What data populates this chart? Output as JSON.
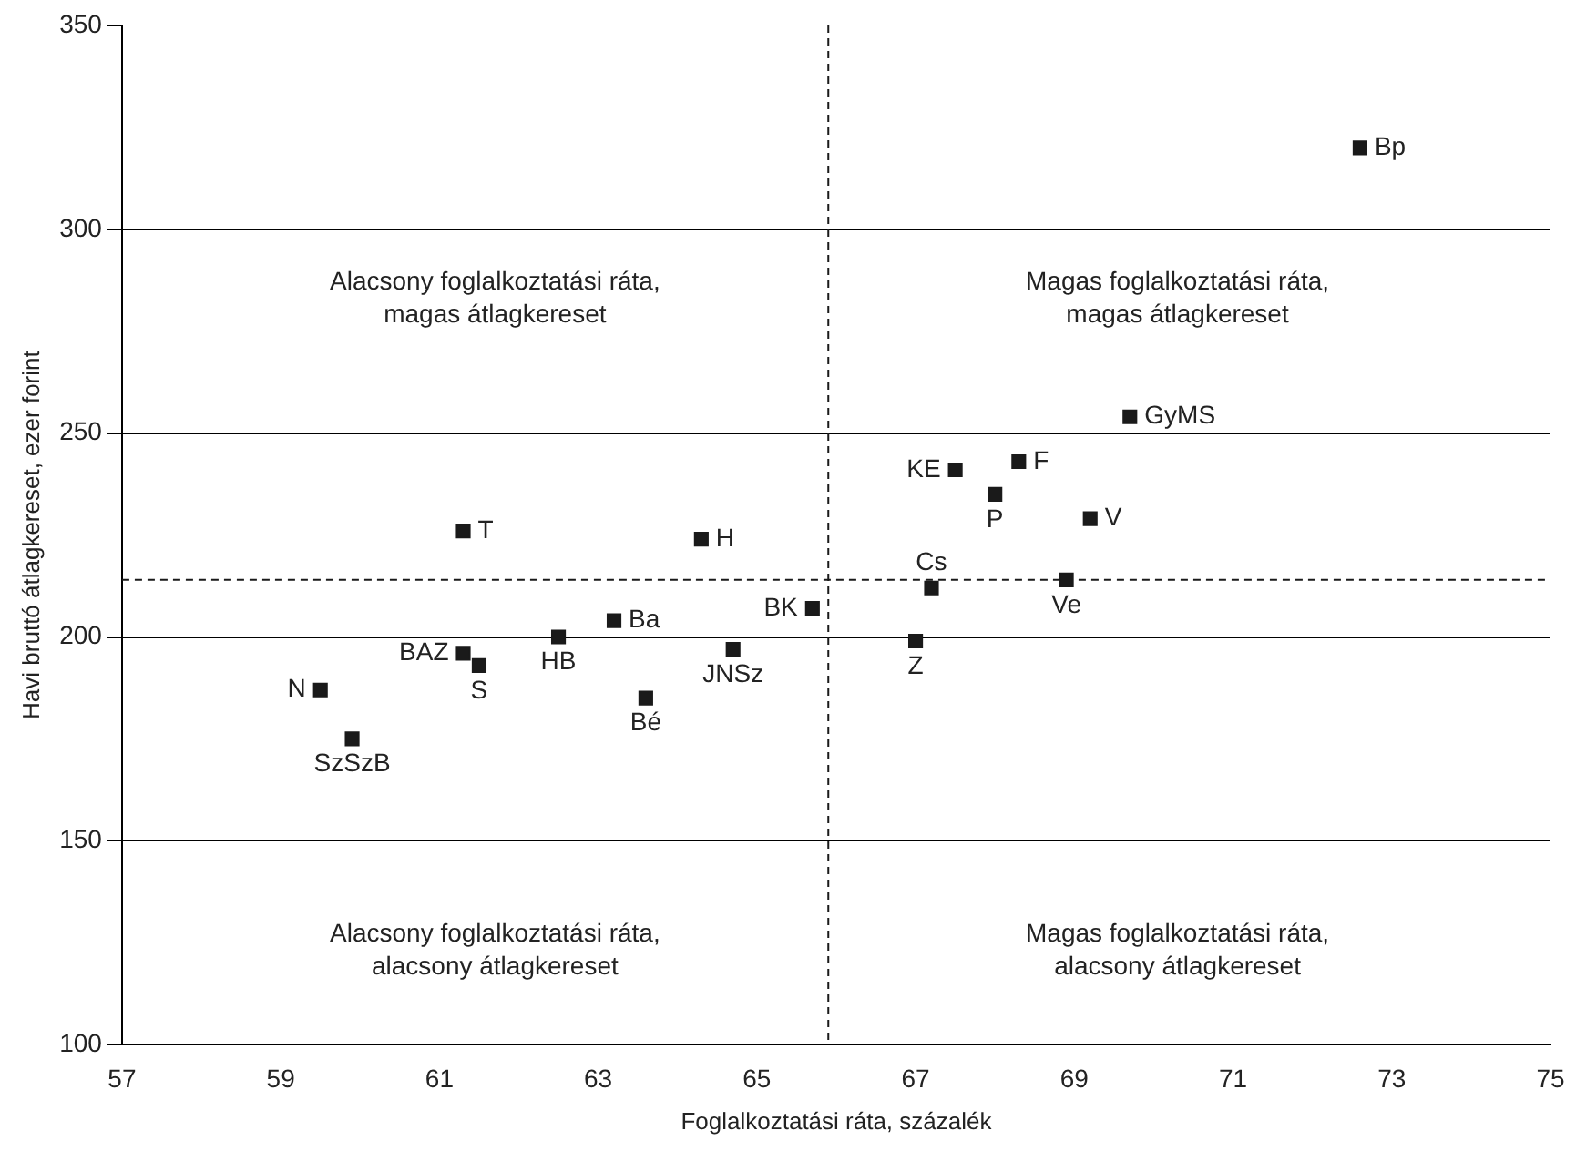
{
  "chart_data": {
    "type": "scatter",
    "xlabel": "Foglalkoztatási ráta, százalék",
    "ylabel": "Havi bruttó átlagkereset, ezer forint",
    "x": [
      72.6,
      69.7,
      67.5,
      68.3,
      68.0,
      69.2,
      67.2,
      68.9,
      67.0,
      65.7,
      61.3,
      64.3,
      63.2,
      62.5,
      61.3,
      61.5,
      59.5,
      59.9,
      63.6,
      64.7
    ],
    "series": [
      {
        "color": "#1a1a1a",
        "values": [
          320,
          254,
          241,
          243,
          235,
          229,
          212,
          214,
          199,
          207,
          226,
          224,
          204,
          200,
          196,
          193,
          187,
          175,
          185,
          197
        ]
      }
    ],
    "marker": "square",
    "xlim": [
      57,
      75
    ],
    "xticks": [
      57,
      59,
      61,
      63,
      65,
      67,
      69,
      71,
      73,
      75
    ],
    "ylim": [
      100,
      350
    ],
    "yticks": [
      100,
      150,
      200,
      250,
      300,
      350
    ],
    "grid": "y",
    "ref_lines": [
      {
        "axis": "x",
        "value": 65.9,
        "line_style": "dashed",
        "color": "#1a1a1a"
      },
      {
        "axis": "y",
        "value": 214,
        "line_style": "dashed",
        "color": "#1a1a1a"
      }
    ],
    "annotations": [
      {
        "text": "Bp",
        "x": 72.6,
        "y": 320
      },
      {
        "text": "GyMS",
        "x": 69.7,
        "y": 254
      },
      {
        "text": "KE",
        "x": 67.5,
        "y": 241
      },
      {
        "text": "F",
        "x": 68.3,
        "y": 243
      },
      {
        "text": "P",
        "x": 68.0,
        "y": 235
      },
      {
        "text": "V",
        "x": 69.2,
        "y": 229
      },
      {
        "text": "Cs",
        "x": 67.2,
        "y": 212
      },
      {
        "text": "Ve",
        "x": 68.9,
        "y": 214
      },
      {
        "text": "Z",
        "x": 67.0,
        "y": 199
      },
      {
        "text": "BK",
        "x": 65.7,
        "y": 207
      },
      {
        "text": "T",
        "x": 61.3,
        "y": 226
      },
      {
        "text": "H",
        "x": 64.3,
        "y": 224
      },
      {
        "text": "Ba",
        "x": 63.2,
        "y": 204
      },
      {
        "text": "HB",
        "x": 62.5,
        "y": 200
      },
      {
        "text": "BAZ",
        "x": 61.3,
        "y": 196
      },
      {
        "text": "S",
        "x": 61.5,
        "y": 193
      },
      {
        "text": "N",
        "x": 59.5,
        "y": 187
      },
      {
        "text": "SzSzB",
        "x": 59.9,
        "y": 175
      },
      {
        "text": "Bé",
        "x": 63.6,
        "y": 185
      },
      {
        "text": "JNSz",
        "x": 64.7,
        "y": 197
      },
      "Alacsony foglalkoztatási ráta,\nmagas átlagkereset",
      "Magas foglalkoztatási ráta,\nmagas átlagkereset",
      "Alacsony foglalkoztatási ráta,\nalacsony átlagkereset",
      "Magas foglalkoztatási ráta,\nalacsony átlagkereset"
    ]
  }
}
